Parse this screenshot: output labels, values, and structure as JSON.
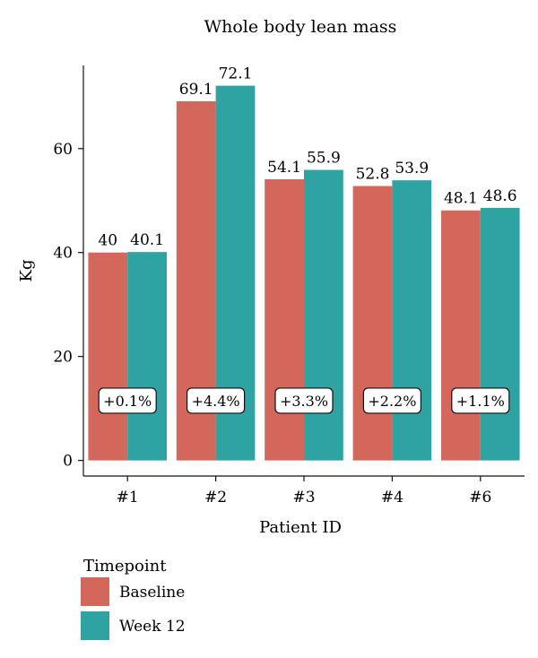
{
  "chart_data": {
    "type": "bar",
    "title": "Whole body lean mass",
    "xlabel": "Patient ID",
    "ylabel": "Kg",
    "categories": [
      "#1",
      "#2",
      "#3",
      "#4",
      "#6"
    ],
    "series": [
      {
        "name": "Baseline",
        "values": [
          40,
          69.1,
          54.1,
          52.8,
          48.1
        ],
        "labels": [
          "40",
          "69.1",
          "54.1",
          "52.8",
          "48.1"
        ],
        "color": "#D4675C"
      },
      {
        "name": "Week 12",
        "values": [
          40.1,
          72.1,
          55.9,
          53.9,
          48.6
        ],
        "labels": [
          "40.1",
          "72.1",
          "55.9",
          "53.9",
          "48.6"
        ],
        "color": "#2FA2A2"
      }
    ],
    "change_labels": [
      "+0.1%",
      "+4.4%",
      "+3.3%",
      "+2.2%",
      "+1.1%"
    ],
    "change_label_value": 11.5,
    "yticks": [
      0,
      20,
      40,
      60
    ],
    "ylim": [
      -3,
      76
    ],
    "grid": false,
    "legend": {
      "title": "Timepoint",
      "placement": "bottom-left"
    }
  }
}
